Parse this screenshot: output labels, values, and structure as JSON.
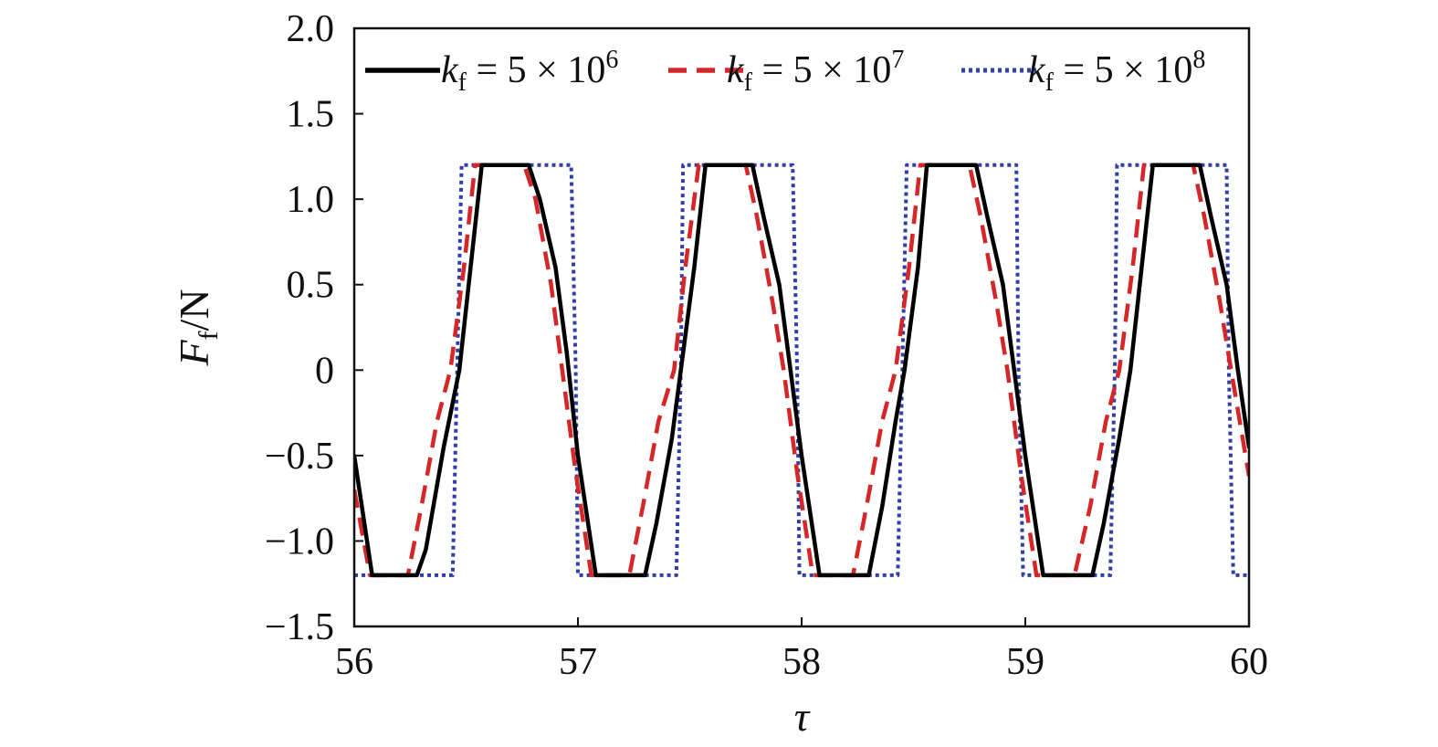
{
  "chart_data": {
    "type": "line",
    "xlabel": "τ",
    "ylabel": {
      "main": "F",
      "sub": "f",
      "suffix": "/N"
    },
    "xlim": [
      56,
      60
    ],
    "ylim": [
      -1.5,
      2.0
    ],
    "xticks": [
      56,
      57,
      58,
      59,
      60
    ],
    "yticks": [
      -1.5,
      -1.0,
      -0.5,
      0,
      0.5,
      1.0,
      1.5,
      2.0
    ],
    "xtick_labels": [
      "56",
      "57",
      "58",
      "59",
      "60"
    ],
    "ytick_labels": [
      "−1.5",
      "−1.0",
      "−0.5",
      "0",
      "0.5",
      "1.0",
      "1.5",
      "2.0"
    ],
    "grid": false,
    "legend_position": "top",
    "series": [
      {
        "name": "kf = 5 × 10^6",
        "legend": {
          "k": "k",
          "sub": "f",
          "eq": " = 5 × 10",
          "exp": "6"
        },
        "color": "#000000",
        "style": "solid",
        "points": [
          [
            56.0,
            -0.5
          ],
          [
            56.08,
            -1.2
          ],
          [
            56.28,
            -1.2
          ],
          [
            56.32,
            -1.05
          ],
          [
            56.4,
            -0.45
          ],
          [
            56.47,
            0.0
          ],
          [
            56.52,
            0.6
          ],
          [
            56.57,
            1.2
          ],
          [
            56.78,
            1.2
          ],
          [
            56.83,
            1.0
          ],
          [
            56.9,
            0.6
          ],
          [
            56.95,
            0.1
          ],
          [
            57.0,
            -0.5
          ],
          [
            57.08,
            -1.2
          ],
          [
            57.3,
            -1.2
          ],
          [
            57.35,
            -0.9
          ],
          [
            57.42,
            -0.4
          ],
          [
            57.46,
            0.0
          ],
          [
            57.52,
            0.6
          ],
          [
            57.57,
            1.2
          ],
          [
            57.78,
            1.2
          ],
          [
            57.83,
            0.9
          ],
          [
            57.9,
            0.5
          ],
          [
            57.95,
            0.0
          ],
          [
            58.0,
            -0.5
          ],
          [
            58.08,
            -1.2
          ],
          [
            58.3,
            -1.2
          ],
          [
            58.36,
            -0.8
          ],
          [
            58.42,
            -0.3
          ],
          [
            58.46,
            0.0
          ],
          [
            58.52,
            0.6
          ],
          [
            58.56,
            1.2
          ],
          [
            58.78,
            1.2
          ],
          [
            58.83,
            0.9
          ],
          [
            58.9,
            0.5
          ],
          [
            58.95,
            0.0
          ],
          [
            59.0,
            -0.5
          ],
          [
            59.08,
            -1.2
          ],
          [
            59.3,
            -1.2
          ],
          [
            59.35,
            -0.9
          ],
          [
            59.42,
            -0.4
          ],
          [
            59.47,
            0.0
          ],
          [
            59.52,
            0.6
          ],
          [
            59.57,
            1.2
          ],
          [
            59.78,
            1.2
          ],
          [
            59.83,
            0.9
          ],
          [
            59.9,
            0.5
          ],
          [
            59.95,
            0.0
          ],
          [
            60.0,
            -0.45
          ]
        ]
      },
      {
        "name": "kf = 5 × 10^7",
        "legend": {
          "k": "k",
          "sub": "f",
          "eq": " = 5 × 10",
          "exp": "7"
        },
        "color": "#d62728",
        "style": "dashed",
        "points": [
          [
            56.0,
            -0.7
          ],
          [
            56.07,
            -1.2
          ],
          [
            56.24,
            -1.2
          ],
          [
            56.3,
            -0.8
          ],
          [
            56.37,
            -0.3
          ],
          [
            56.43,
            0.0
          ],
          [
            56.49,
            0.6
          ],
          [
            56.54,
            1.2
          ],
          [
            56.76,
            1.2
          ],
          [
            56.81,
            1.0
          ],
          [
            56.88,
            0.5
          ],
          [
            56.93,
            0.0
          ],
          [
            56.99,
            -0.6
          ],
          [
            57.06,
            -1.2
          ],
          [
            57.23,
            -1.2
          ],
          [
            57.29,
            -0.8
          ],
          [
            57.36,
            -0.3
          ],
          [
            57.43,
            0.0
          ],
          [
            57.48,
            0.6
          ],
          [
            57.54,
            1.2
          ],
          [
            57.75,
            1.2
          ],
          [
            57.8,
            0.9
          ],
          [
            57.87,
            0.4
          ],
          [
            57.92,
            0.0
          ],
          [
            57.98,
            -0.6
          ],
          [
            58.05,
            -1.2
          ],
          [
            58.23,
            -1.2
          ],
          [
            58.29,
            -0.8
          ],
          [
            58.36,
            -0.3
          ],
          [
            58.42,
            0.0
          ],
          [
            58.48,
            0.6
          ],
          [
            58.53,
            1.2
          ],
          [
            58.75,
            1.2
          ],
          [
            58.8,
            0.9
          ],
          [
            58.87,
            0.4
          ],
          [
            58.92,
            0.0
          ],
          [
            58.98,
            -0.6
          ],
          [
            59.05,
            -1.2
          ],
          [
            59.22,
            -1.2
          ],
          [
            59.29,
            -0.8
          ],
          [
            59.36,
            -0.3
          ],
          [
            59.42,
            0.0
          ],
          [
            59.48,
            0.6
          ],
          [
            59.53,
            1.2
          ],
          [
            59.75,
            1.2
          ],
          [
            59.8,
            0.9
          ],
          [
            59.87,
            0.4
          ],
          [
            59.92,
            0.0
          ],
          [
            60.0,
            -0.62
          ]
        ]
      },
      {
        "name": "kf = 5 × 10^8",
        "legend": {
          "k": "k",
          "sub": "f",
          "eq": " = 5 × 10",
          "exp": "8"
        },
        "color": "#2f3fa8",
        "style": "dotted",
        "points": [
          [
            56.0,
            -1.2
          ],
          [
            56.44,
            -1.2
          ],
          [
            56.46,
            0.0
          ],
          [
            56.48,
            1.2
          ],
          [
            56.97,
            1.2
          ],
          [
            56.99,
            0.0
          ],
          [
            57.0,
            -1.2
          ],
          [
            57.44,
            -1.2
          ],
          [
            57.46,
            0.0
          ],
          [
            57.47,
            1.2
          ],
          [
            57.96,
            1.2
          ],
          [
            57.98,
            0.0
          ],
          [
            57.99,
            -1.2
          ],
          [
            58.43,
            -1.2
          ],
          [
            58.45,
            0.0
          ],
          [
            58.47,
            1.2
          ],
          [
            58.96,
            1.2
          ],
          [
            58.97,
            0.0
          ],
          [
            58.99,
            -1.2
          ],
          [
            59.38,
            -1.2
          ],
          [
            59.4,
            0.0
          ],
          [
            59.41,
            1.2
          ],
          [
            59.9,
            1.2
          ],
          [
            59.91,
            0.0
          ],
          [
            59.93,
            -1.2
          ],
          [
            60.0,
            -1.2
          ]
        ]
      }
    ]
  }
}
